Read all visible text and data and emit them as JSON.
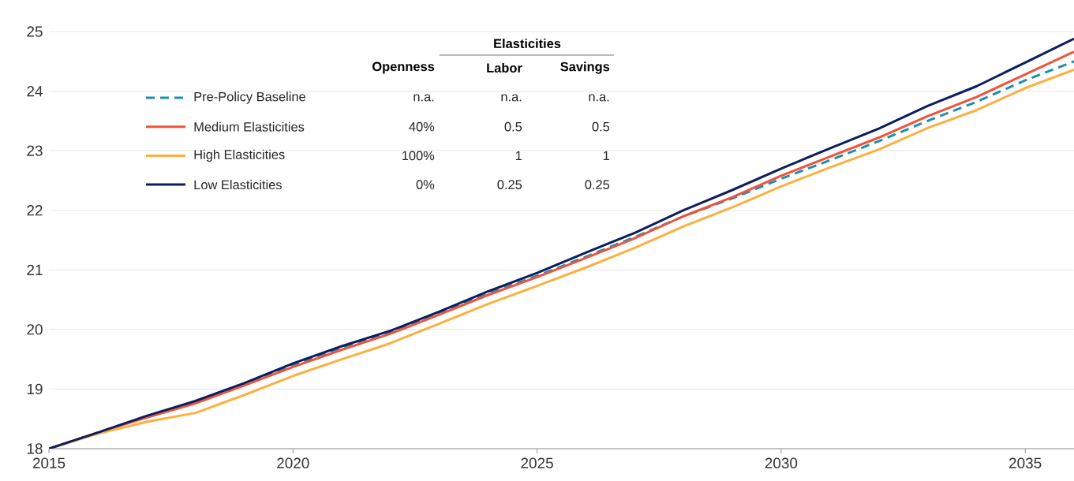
{
  "chart_data": {
    "type": "line",
    "x": [
      2015,
      2016,
      2017,
      2018,
      2019,
      2020,
      2021,
      2022,
      2023,
      2024,
      2025,
      2026,
      2027,
      2028,
      2029,
      2030,
      2031,
      2032,
      2033,
      2034,
      2035,
      2036
    ],
    "series": [
      {
        "name": "Pre-Policy Baseline",
        "color": "#1a8fb0",
        "line_style": "dashed",
        "values": [
          18.0,
          18.27,
          18.54,
          18.79,
          19.08,
          19.4,
          19.7,
          19.96,
          20.28,
          20.6,
          20.9,
          21.22,
          21.55,
          21.9,
          22.2,
          22.53,
          22.84,
          23.16,
          23.5,
          23.82,
          24.18,
          24.5
        ]
      },
      {
        "name": "Medium Elasticities",
        "color": "#f0533a",
        "line_style": "solid",
        "values": [
          18.0,
          18.27,
          18.52,
          18.76,
          19.06,
          19.37,
          19.66,
          19.93,
          20.25,
          20.58,
          20.88,
          21.2,
          21.53,
          21.9,
          22.22,
          22.58,
          22.9,
          23.22,
          23.58,
          23.9,
          24.28,
          24.66
        ]
      },
      {
        "name": "High Elasticities",
        "color": "#fbb040",
        "line_style": "solid",
        "values": [
          18.0,
          18.25,
          18.45,
          18.6,
          18.9,
          19.22,
          19.5,
          19.77,
          20.1,
          20.43,
          20.73,
          21.04,
          21.37,
          21.73,
          22.05,
          22.4,
          22.72,
          23.02,
          23.38,
          23.68,
          24.05,
          24.36
        ]
      },
      {
        "name": "Low Elasticities",
        "color": "#0a1f5c",
        "line_style": "solid",
        "values": [
          18.0,
          18.27,
          18.55,
          18.8,
          19.1,
          19.43,
          19.72,
          19.98,
          20.3,
          20.64,
          20.95,
          21.29,
          21.62,
          22.0,
          22.34,
          22.7,
          23.04,
          23.37,
          23.75,
          24.08,
          24.48,
          24.88
        ]
      }
    ],
    "xlim": [
      2015,
      2036
    ],
    "xticks": [
      2015,
      2020,
      2025,
      2030,
      2035
    ],
    "ylim": [
      18,
      25
    ],
    "yticks": [
      18,
      19,
      20,
      21,
      22,
      23,
      24,
      25
    ],
    "grid": "y",
    "legend": "top left",
    "marker": "none",
    "annotations": [
      "Elasticities",
      "Openness",
      "Labor",
      "Savings",
      "n.a.",
      "n.a.",
      "n.a.",
      "40%",
      "0.5",
      "0.5",
      "100%",
      "1",
      "1",
      "0%",
      "0.25",
      "0.25"
    ]
  }
}
